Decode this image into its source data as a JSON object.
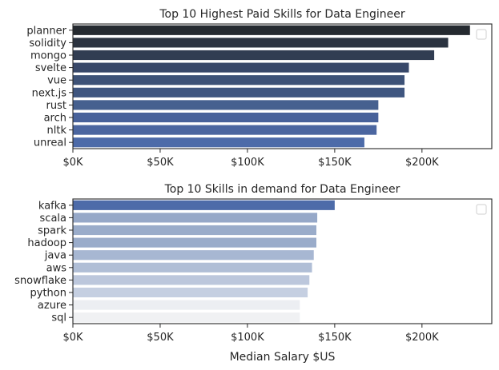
{
  "chart_data": [
    {
      "type": "bar",
      "orientation": "horizontal",
      "title": "Top 10 Highest Paid Skills for Data Engineer",
      "xlabel": "",
      "ylabel": "",
      "categories": [
        "planner",
        "solidity",
        "mongo",
        "svelte",
        "vue",
        "next.js",
        "rust",
        "arch",
        "nltk",
        "unreal"
      ],
      "values": [
        227500,
        215000,
        207000,
        192500,
        190000,
        190000,
        175000,
        175000,
        174000,
        167000
      ],
      "xlim": [
        0,
        240000
      ],
      "xticks": [
        0,
        50000,
        100000,
        150000,
        200000
      ],
      "xtick_labels": [
        "$0K",
        "$50K",
        "$100K",
        "$150K",
        "$200K"
      ],
      "grid": false,
      "legend": "top-right (empty)",
      "bar_colors": [
        "#252a30",
        "#2b3340",
        "#313d52",
        "#384869",
        "#3d5277",
        "#3f5680",
        "#46608f",
        "#47619a",
        "#4b66a0",
        "#4d6ba9"
      ]
    },
    {
      "type": "bar",
      "orientation": "horizontal",
      "title": "Top 10 Skills in demand for Data Engineer",
      "xlabel": "Median Salary $US",
      "ylabel": "",
      "categories": [
        "kafka",
        "scala",
        "spark",
        "hadoop",
        "java",
        "aws",
        "snowflake",
        "python",
        "azure",
        "sql"
      ],
      "values": [
        150000,
        140000,
        139500,
        139500,
        138000,
        137000,
        135500,
        134500,
        130000,
        130000
      ],
      "xlim": [
        0,
        240000
      ],
      "xticks": [
        0,
        50000,
        100000,
        150000,
        200000
      ],
      "xtick_labels": [
        "$0K",
        "$50K",
        "$100K",
        "$150K",
        "$200K"
      ],
      "grid": false,
      "legend": "top-right (empty)",
      "bar_colors": [
        "#4d6ba9",
        "#96a8c8",
        "#9aacca",
        "#9aacca",
        "#a7b7d2",
        "#b0bed6",
        "#bcc7dc",
        "#c5cfe1",
        "#eceef2",
        "#f0f1f3"
      ]
    }
  ]
}
